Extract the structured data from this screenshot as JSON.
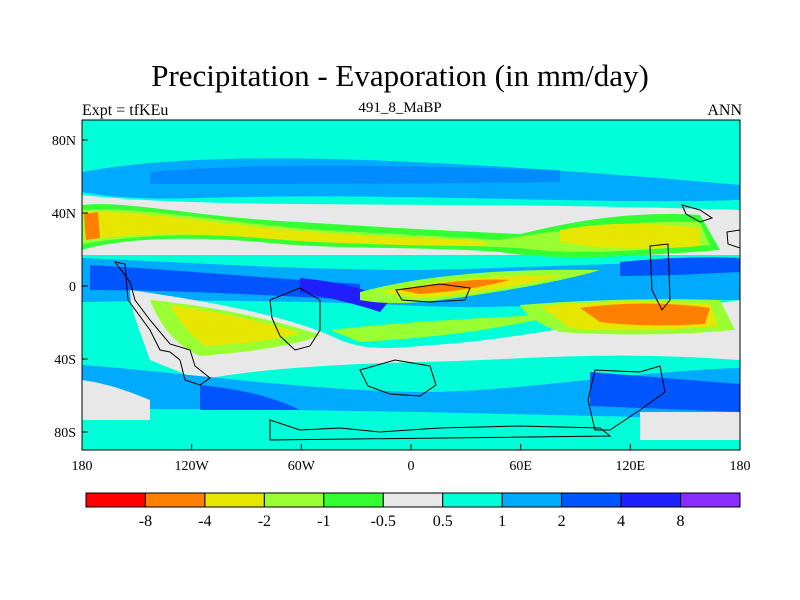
{
  "map": {
    "title": "Precipitation - Evaporation (in mm/day)",
    "left_string": "Expt = tfKEu",
    "center_string": "491_8_MaBP",
    "right_string": "ANN",
    "lat_ticks": [
      "80N",
      "40N",
      "0",
      "40S",
      "80S"
    ],
    "lon_ticks": [
      "180",
      "120W",
      "60W",
      "0",
      "60E",
      "120E",
      "180"
    ],
    "colorbar": {
      "colors": [
        "#ff0000",
        "#ff8000",
        "#e6e600",
        "#99ff33",
        "#33ff33",
        "#e8e8e8",
        "#00ffd9",
        "#00aaff",
        "#0055ff",
        "#2020ff",
        "#8b2cff"
      ],
      "labels": [
        "-8",
        "-4",
        "-2",
        "-1",
        "-0.5",
        "0.5",
        "1",
        "2",
        "4",
        "8"
      ]
    }
  }
}
